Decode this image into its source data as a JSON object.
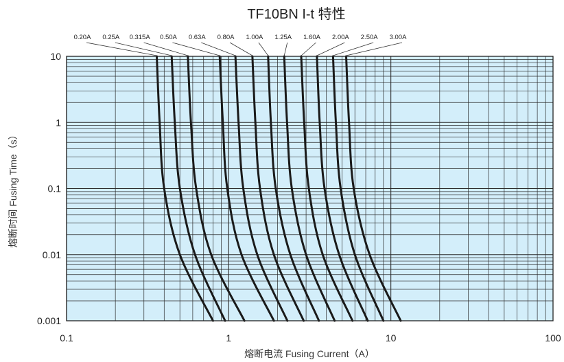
{
  "chart_data": {
    "type": "line",
    "title": "TF10BN I-t 特性",
    "xlabel": "熔断电流 Fusing Current（A）",
    "ylabel": "熔断时间 Fusing Time（s）",
    "x_scale": "log",
    "y_scale": "log",
    "xlim": [
      0.1,
      100
    ],
    "ylim": [
      0.001,
      10
    ],
    "x_ticks": [
      {
        "value": 0.1,
        "label": "0.1"
      },
      {
        "value": 1,
        "label": "1"
      },
      {
        "value": 10,
        "label": "10"
      },
      {
        "value": 100,
        "label": "100"
      }
    ],
    "y_ticks": [
      {
        "value": 10,
        "label": "10"
      },
      {
        "value": 1,
        "label": "1"
      },
      {
        "value": 0.1,
        "label": "0.1"
      },
      {
        "value": 0.01,
        "label": "0.01"
      },
      {
        "value": 0.001,
        "label": "0.001"
      }
    ],
    "grid": true,
    "legend": "top",
    "colors": {
      "plot_bg": "#d3eefa",
      "grid": "#2a2a2a",
      "curve": "#1a1a1a"
    },
    "series": [
      {
        "name": "0.20A",
        "points": [
          [
            0.36,
            10
          ],
          [
            0.375,
            1
          ],
          [
            0.4,
            0.1
          ],
          [
            0.5,
            0.01
          ],
          [
            0.8,
            0.001
          ]
        ]
      },
      {
        "name": "0.25A",
        "points": [
          [
            0.445,
            10
          ],
          [
            0.465,
            1
          ],
          [
            0.5,
            0.1
          ],
          [
            0.62,
            0.01
          ],
          [
            0.95,
            0.001
          ]
        ]
      },
      {
        "name": "0.315A",
        "points": [
          [
            0.56,
            10
          ],
          [
            0.585,
            1
          ],
          [
            0.63,
            0.1
          ],
          [
            0.78,
            0.01
          ],
          [
            1.25,
            0.001
          ]
        ]
      },
      {
        "name": "0.50A",
        "points": [
          [
            0.88,
            10
          ],
          [
            0.92,
            1
          ],
          [
            0.98,
            0.1
          ],
          [
            1.2,
            0.01
          ],
          [
            1.9,
            0.001
          ]
        ]
      },
      {
        "name": "0.63A",
        "points": [
          [
            1.1,
            10
          ],
          [
            1.15,
            1
          ],
          [
            1.23,
            0.1
          ],
          [
            1.5,
            0.01
          ],
          [
            2.3,
            0.001
          ]
        ]
      },
      {
        "name": "0.80A",
        "points": [
          [
            1.4,
            10
          ],
          [
            1.46,
            1
          ],
          [
            1.56,
            0.1
          ],
          [
            1.9,
            0.01
          ],
          [
            2.9,
            0.001
          ]
        ]
      },
      {
        "name": "1.00A",
        "points": [
          [
            1.75,
            10
          ],
          [
            1.82,
            1
          ],
          [
            1.95,
            0.1
          ],
          [
            2.4,
            0.01
          ],
          [
            3.6,
            0.001
          ]
        ]
      },
      {
        "name": "1.25A",
        "points": [
          [
            2.2,
            10
          ],
          [
            2.29,
            1
          ],
          [
            2.45,
            0.1
          ],
          [
            3.0,
            0.01
          ],
          [
            4.5,
            0.001
          ]
        ]
      },
      {
        "name": "1.60A",
        "points": [
          [
            2.8,
            10
          ],
          [
            2.92,
            1
          ],
          [
            3.12,
            0.1
          ],
          [
            3.8,
            0.01
          ],
          [
            5.8,
            0.001
          ]
        ]
      },
      {
        "name": "2.00A",
        "points": [
          [
            3.5,
            10
          ],
          [
            3.64,
            1
          ],
          [
            3.9,
            0.1
          ],
          [
            4.8,
            0.01
          ],
          [
            7.2,
            0.001
          ]
        ]
      },
      {
        "name": "2.50A",
        "points": [
          [
            4.4,
            10
          ],
          [
            4.58,
            1
          ],
          [
            4.9,
            0.1
          ],
          [
            6.0,
            0.01
          ],
          [
            9.0,
            0.001
          ]
        ]
      },
      {
        "name": "3.00A",
        "points": [
          [
            5.3,
            10
          ],
          [
            5.52,
            1
          ],
          [
            5.9,
            0.1
          ],
          [
            7.4,
            0.01
          ],
          [
            11.5,
            0.001
          ]
        ]
      }
    ]
  }
}
